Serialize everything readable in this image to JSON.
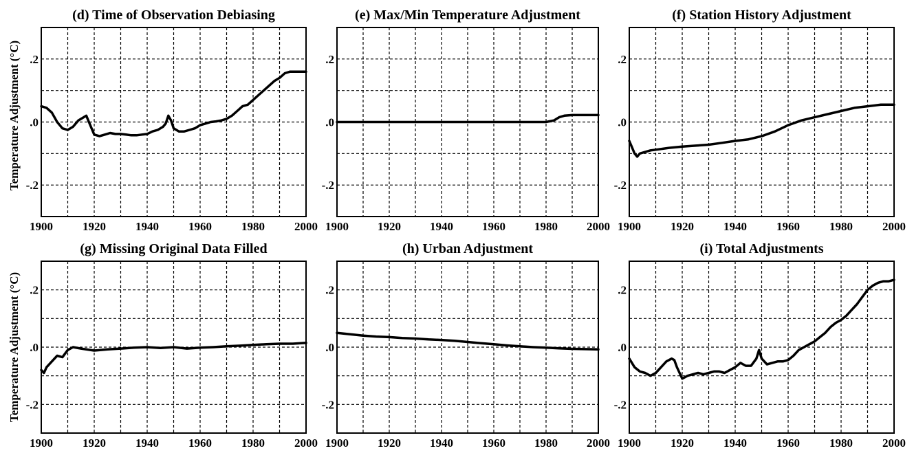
{
  "figure": {
    "ylabel_top": "Temperature Adjustment (°C)",
    "ylabel_bottom": "Temperature Adjustment (°C)"
  },
  "chart_data": [
    {
      "type": "line",
      "title": "(d)  Time of Observation Debiasing",
      "xlim": [
        1900,
        2000
      ],
      "ylim": [
        -0.3,
        0.3
      ],
      "x_ticks": [
        "1900",
        "1920",
        "1940",
        "1960",
        "1980",
        "2000"
      ],
      "y_ticks": [
        ".2",
        ".0",
        "-.2"
      ],
      "grid": true,
      "x": [
        1900,
        1902,
        1904,
        1906,
        1908,
        1910,
        1912,
        1914,
        1916,
        1917,
        1918,
        1920,
        1922,
        1924,
        1926,
        1928,
        1930,
        1932,
        1934,
        1936,
        1938,
        1940,
        1942,
        1944,
        1946,
        1947,
        1948,
        1949,
        1950,
        1952,
        1954,
        1956,
        1958,
        1960,
        1962,
        1964,
        1966,
        1968,
        1970,
        1972,
        1974,
        1976,
        1978,
        1980,
        1982,
        1984,
        1986,
        1988,
        1990,
        1992,
        1994,
        1996,
        1998,
        2000
      ],
      "y": [
        0.05,
        0.045,
        0.03,
        0.0,
        -0.02,
        -0.025,
        -0.015,
        0.005,
        0.015,
        0.02,
        0.0,
        -0.04,
        -0.045,
        -0.04,
        -0.035,
        -0.038,
        -0.038,
        -0.04,
        -0.042,
        -0.042,
        -0.04,
        -0.038,
        -0.03,
        -0.025,
        -0.015,
        -0.005,
        0.02,
        0.005,
        -0.02,
        -0.03,
        -0.03,
        -0.025,
        -0.02,
        -0.01,
        -0.005,
        0.0,
        0.002,
        0.005,
        0.01,
        0.02,
        0.035,
        0.05,
        0.055,
        0.07,
        0.085,
        0.1,
        0.115,
        0.13,
        0.14,
        0.155,
        0.16,
        0.16,
        0.16,
        0.16
      ]
    },
    {
      "type": "line",
      "title": "(e)  Max/Min Temperature Adjustment",
      "xlim": [
        1900,
        2000
      ],
      "ylim": [
        -0.3,
        0.3
      ],
      "x_ticks": [
        "1900",
        "1920",
        "1940",
        "1960",
        "1980",
        "2000"
      ],
      "y_ticks": [
        ".2",
        ".0",
        "-.2"
      ],
      "grid": true,
      "x": [
        1900,
        1920,
        1940,
        1960,
        1980,
        1983,
        1985,
        1987,
        1990,
        1995,
        2000
      ],
      "y": [
        0.0,
        0.0,
        0.0,
        0.0,
        0.0,
        0.005,
        0.015,
        0.02,
        0.022,
        0.022,
        0.022
      ]
    },
    {
      "type": "line",
      "title": "(f)  Station History Adjustment",
      "xlim": [
        1900,
        2000
      ],
      "ylim": [
        -0.3,
        0.3
      ],
      "x_ticks": [
        "1900",
        "1920",
        "1940",
        "1960",
        "1980",
        "2000"
      ],
      "y_ticks": [
        ".2",
        ".0",
        "-.2"
      ],
      "grid": true,
      "x": [
        1900,
        1901,
        1902,
        1903,
        1904,
        1906,
        1908,
        1910,
        1915,
        1920,
        1925,
        1930,
        1935,
        1940,
        1945,
        1950,
        1955,
        1960,
        1965,
        1970,
        1975,
        1980,
        1985,
        1990,
        1995,
        2000
      ],
      "y": [
        -0.06,
        -0.08,
        -0.1,
        -0.11,
        -0.1,
        -0.095,
        -0.09,
        -0.088,
        -0.082,
        -0.078,
        -0.075,
        -0.072,
        -0.066,
        -0.06,
        -0.055,
        -0.045,
        -0.03,
        -0.01,
        0.005,
        0.015,
        0.025,
        0.035,
        0.045,
        0.05,
        0.055,
        0.055
      ]
    },
    {
      "type": "line",
      "title": "(g)  Missing Original Data Filled",
      "xlim": [
        1900,
        2000
      ],
      "ylim": [
        -0.3,
        0.3
      ],
      "x_ticks": [
        "1900",
        "1920",
        "1940",
        "1960",
        "1980",
        "2000"
      ],
      "y_ticks": [
        ".2",
        ".0",
        "-.2"
      ],
      "grid": true,
      "x": [
        1900,
        1901,
        1902,
        1904,
        1906,
        1908,
        1910,
        1912,
        1915,
        1920,
        1925,
        1930,
        1935,
        1940,
        1945,
        1950,
        1955,
        1960,
        1965,
        1970,
        1975,
        1980,
        1985,
        1990,
        1995,
        2000
      ],
      "y": [
        -0.08,
        -0.09,
        -0.07,
        -0.05,
        -0.03,
        -0.035,
        -0.01,
        0.0,
        -0.005,
        -0.012,
        -0.008,
        -0.005,
        -0.002,
        0.0,
        -0.003,
        0.0,
        -0.005,
        -0.002,
        0.0,
        0.003,
        0.005,
        0.008,
        0.01,
        0.012,
        0.012,
        0.015
      ]
    },
    {
      "type": "line",
      "title": "(h)  Urban Adjustment",
      "xlim": [
        1900,
        2000
      ],
      "ylim": [
        -0.3,
        0.3
      ],
      "x_ticks": [
        "1900",
        "1920",
        "1940",
        "1960",
        "1980",
        "2000"
      ],
      "y_ticks": [
        ".2",
        ".0",
        "-.2"
      ],
      "grid": true,
      "x": [
        1900,
        1905,
        1910,
        1915,
        1920,
        1925,
        1930,
        1935,
        1940,
        1945,
        1950,
        1955,
        1960,
        1965,
        1970,
        1975,
        1980,
        1985,
        1990,
        1995,
        2000
      ],
      "y": [
        0.05,
        0.045,
        0.04,
        0.037,
        0.035,
        0.032,
        0.03,
        0.027,
        0.025,
        0.022,
        0.018,
        0.014,
        0.01,
        0.006,
        0.003,
        0.0,
        -0.002,
        -0.004,
        -0.006,
        -0.007,
        -0.008
      ]
    },
    {
      "type": "line",
      "title": "(i)  Total Adjustments",
      "xlim": [
        1900,
        2000
      ],
      "ylim": [
        -0.3,
        0.3
      ],
      "x_ticks": [
        "1900",
        "1920",
        "1940",
        "1960",
        "1980",
        "2000"
      ],
      "y_ticks": [
        ".2",
        ".0",
        "-.2"
      ],
      "grid": true,
      "x": [
        1900,
        1902,
        1904,
        1906,
        1908,
        1910,
        1912,
        1914,
        1916,
        1917,
        1918,
        1920,
        1922,
        1924,
        1926,
        1928,
        1930,
        1932,
        1934,
        1936,
        1938,
        1940,
        1942,
        1944,
        1946,
        1948,
        1949,
        1950,
        1952,
        1954,
        1956,
        1958,
        1960,
        1962,
        1964,
        1966,
        1968,
        1970,
        1972,
        1974,
        1976,
        1978,
        1980,
        1982,
        1984,
        1986,
        1988,
        1990,
        1992,
        1994,
        1996,
        1998,
        2000
      ],
      "y": [
        -0.04,
        -0.07,
        -0.085,
        -0.09,
        -0.1,
        -0.09,
        -0.07,
        -0.05,
        -0.04,
        -0.045,
        -0.07,
        -0.11,
        -0.1,
        -0.095,
        -0.09,
        -0.095,
        -0.09,
        -0.085,
        -0.085,
        -0.09,
        -0.08,
        -0.07,
        -0.055,
        -0.065,
        -0.065,
        -0.04,
        -0.01,
        -0.04,
        -0.06,
        -0.055,
        -0.05,
        -0.05,
        -0.045,
        -0.03,
        -0.01,
        0.0,
        0.01,
        0.02,
        0.035,
        0.05,
        0.07,
        0.085,
        0.095,
        0.11,
        0.13,
        0.15,
        0.175,
        0.2,
        0.215,
        0.225,
        0.23,
        0.23,
        0.235
      ]
    }
  ]
}
